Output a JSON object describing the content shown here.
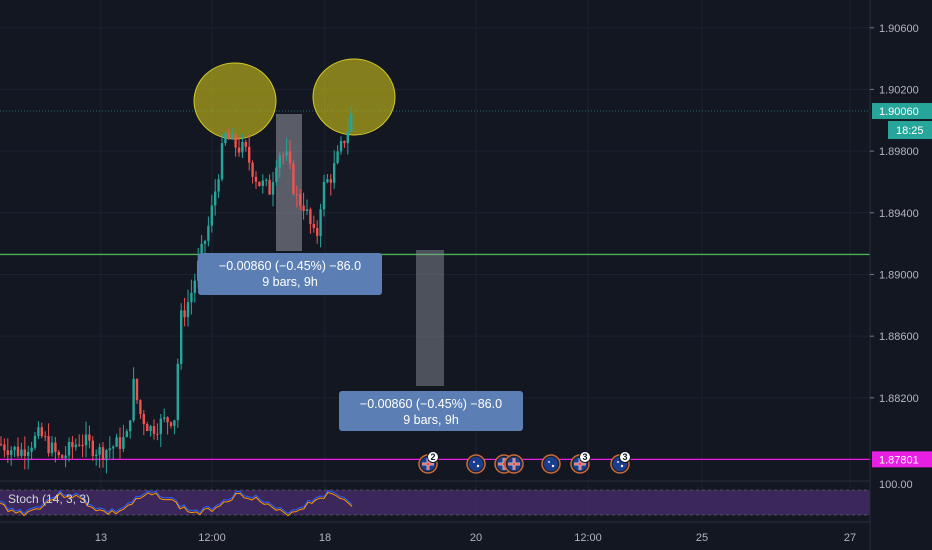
{
  "chart_data": {
    "type": "candlestick",
    "price_axis": {
      "ticks": [
        "1.90600",
        "1.90200",
        "1.89800",
        "1.89400",
        "1.89000",
        "1.88600",
        "1.88200"
      ],
      "range": [
        1.8768,
        1.9078
      ]
    },
    "time_axis": {
      "ticks": [
        "13",
        "12:00",
        "18",
        "20",
        "12:00",
        "25",
        "27"
      ]
    },
    "last_price": {
      "value": "1.90060",
      "countdown": "18:25",
      "color": "#26a69a"
    },
    "horizontal_lines": [
      {
        "price": 1.8913,
        "color": "#4caf50"
      },
      {
        "price": 1.87801,
        "label": "1.87801",
        "color": "#e91ee3"
      }
    ],
    "circles": [
      {
        "name": "left-shoulder",
        "color": "#b5ad1a"
      },
      {
        "name": "right-shoulder",
        "color": "#b5ad1a"
      }
    ],
    "measurements": [
      {
        "line1": "−0.00860 (−0.45%) −86.0",
        "line2": "9 bars, 9h"
      },
      {
        "line1": "−0.00860 (−0.45%) −86.0",
        "line2": "9 bars, 9h"
      }
    ],
    "events": [
      {
        "type": "gb",
        "count": "2"
      },
      {
        "type": "au"
      },
      {
        "type": "gb-double"
      },
      {
        "type": "au"
      },
      {
        "type": "gb",
        "count": "3"
      },
      {
        "type": "au",
        "count": "3"
      }
    ],
    "indicator": {
      "label": "Stoch (14, 3, 3)",
      "tick": "100.00",
      "band_color": "#4a2d6e",
      "line_colors": [
        "#2962ff",
        "#ff9800"
      ]
    },
    "colors": {
      "up": "#26a69a",
      "down": "#ef5350",
      "background": "#131722",
      "grid": "#1e2230"
    }
  }
}
